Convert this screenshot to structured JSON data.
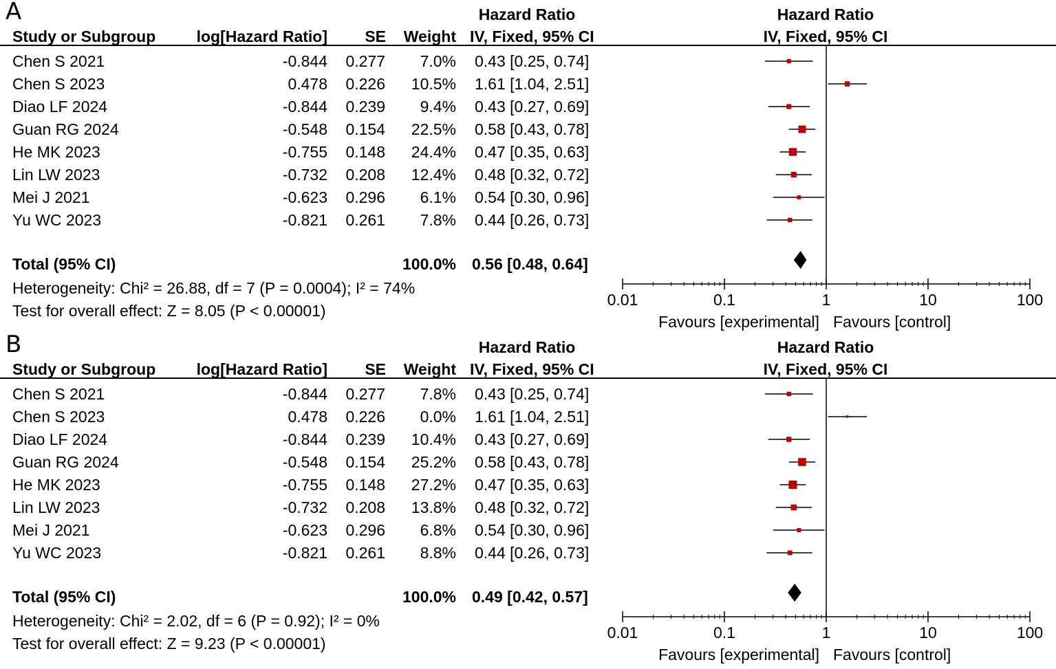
{
  "chart_data": [
    {
      "type": "forest",
      "panel_label": "A",
      "headers": {
        "study": "Study or Subgroup",
        "loghr": "log[Hazard Ratio]",
        "se": "SE",
        "weight": "Weight",
        "hr_title": "Hazard Ratio",
        "hr_method": "IV, Fixed, 95% CI",
        "plot_title": "Hazard Ratio",
        "plot_method": "IV, Fixed, 95% CI"
      },
      "studies": [
        {
          "name": "Chen S 2021",
          "loghr": "-0.844",
          "se": "0.277",
          "weight": "7.0%",
          "hr_text": "0.43 [0.25, 0.74]",
          "hr": 0.43,
          "lo": 0.25,
          "hi": 0.74,
          "w": 7.0
        },
        {
          "name": "Chen S 2023",
          "loghr": "0.478",
          "se": "0.226",
          "weight": "10.5%",
          "hr_text": "1.61 [1.04, 2.51]",
          "hr": 1.61,
          "lo": 1.04,
          "hi": 2.51,
          "w": 10.5
        },
        {
          "name": "Diao LF 2024",
          "loghr": "-0.844",
          "se": "0.239",
          "weight": "9.4%",
          "hr_text": "0.43 [0.27, 0.69]",
          "hr": 0.43,
          "lo": 0.27,
          "hi": 0.69,
          "w": 9.4
        },
        {
          "name": "Guan RG 2024",
          "loghr": "-0.548",
          "se": "0.154",
          "weight": "22.5%",
          "hr_text": "0.58 [0.43, 0.78]",
          "hr": 0.58,
          "lo": 0.43,
          "hi": 0.78,
          "w": 22.5
        },
        {
          "name": "He MK 2023",
          "loghr": "-0.755",
          "se": "0.148",
          "weight": "24.4%",
          "hr_text": "0.47 [0.35, 0.63]",
          "hr": 0.47,
          "lo": 0.35,
          "hi": 0.63,
          "w": 24.4
        },
        {
          "name": "Lin LW 2023",
          "loghr": "-0.732",
          "se": "0.208",
          "weight": "12.4%",
          "hr_text": "0.48 [0.32, 0.72]",
          "hr": 0.48,
          "lo": 0.32,
          "hi": 0.72,
          "w": 12.4
        },
        {
          "name": "Mei J 2021",
          "loghr": "-0.623",
          "se": "0.296",
          "weight": "6.1%",
          "hr_text": "0.54 [0.30, 0.96]",
          "hr": 0.54,
          "lo": 0.3,
          "hi": 0.96,
          "w": 6.1
        },
        {
          "name": "Yu WC 2023",
          "loghr": "-0.821",
          "se": "0.261",
          "weight": "7.8%",
          "hr_text": "0.44 [0.26, 0.73]",
          "hr": 0.44,
          "lo": 0.26,
          "hi": 0.73,
          "w": 7.8
        }
      ],
      "total": {
        "label": "Total (95% CI)",
        "weight": "100.0%",
        "hr_text": "0.56 [0.48, 0.64]",
        "hr": 0.56,
        "lo": 0.48,
        "hi": 0.64
      },
      "heterogeneity": "Heterogeneity: Chi² = 26.88, df = 7 (P = 0.0004); I² = 74%",
      "overall_effect": "Test for overall effect: Z = 8.05 (P < 0.00001)",
      "axis": {
        "scale": "log",
        "range": [
          0.01,
          100
        ],
        "ticks": [
          "0.01",
          "0.1",
          "1",
          "10",
          "100"
        ],
        "tick_values": [
          0.01,
          0.1,
          1,
          10,
          100
        ]
      },
      "favours_left": "Favours [experimental]",
      "favours_right": "Favours [control]"
    },
    {
      "type": "forest",
      "panel_label": "B",
      "headers": {
        "study": "Study or Subgroup",
        "loghr": "log[Hazard Ratio]",
        "se": "SE",
        "weight": "Weight",
        "hr_title": "Hazard Ratio",
        "hr_method": "IV, Fixed, 95% CI",
        "plot_title": "Hazard Ratio",
        "plot_method": "IV, Fixed, 95% CI"
      },
      "studies": [
        {
          "name": "Chen S 2021",
          "loghr": "-0.844",
          "se": "0.277",
          "weight": "7.8%",
          "hr_text": "0.43 [0.25, 0.74]",
          "hr": 0.43,
          "lo": 0.25,
          "hi": 0.74,
          "w": 7.8
        },
        {
          "name": "Chen S 2023",
          "loghr": "0.478",
          "se": "0.226",
          "weight": "0.0%",
          "hr_text": "1.61 [1.04, 2.51]",
          "hr": 1.61,
          "lo": 1.04,
          "hi": 2.51,
          "w": 0.0
        },
        {
          "name": "Diao LF 2024",
          "loghr": "-0.844",
          "se": "0.239",
          "weight": "10.4%",
          "hr_text": "0.43 [0.27, 0.69]",
          "hr": 0.43,
          "lo": 0.27,
          "hi": 0.69,
          "w": 10.4
        },
        {
          "name": "Guan RG 2024",
          "loghr": "-0.548",
          "se": "0.154",
          "weight": "25.2%",
          "hr_text": "0.58 [0.43, 0.78]",
          "hr": 0.58,
          "lo": 0.43,
          "hi": 0.78,
          "w": 25.2
        },
        {
          "name": "He MK 2023",
          "loghr": "-0.755",
          "se": "0.148",
          "weight": "27.2%",
          "hr_text": "0.47 [0.35, 0.63]",
          "hr": 0.47,
          "lo": 0.35,
          "hi": 0.63,
          "w": 27.2
        },
        {
          "name": "Lin LW 2023",
          "loghr": "-0.732",
          "se": "0.208",
          "weight": "13.8%",
          "hr_text": "0.48 [0.32, 0.72]",
          "hr": 0.48,
          "lo": 0.32,
          "hi": 0.72,
          "w": 13.8
        },
        {
          "name": "Mei J 2021",
          "loghr": "-0.623",
          "se": "0.296",
          "weight": "6.8%",
          "hr_text": "0.54 [0.30, 0.96]",
          "hr": 0.54,
          "lo": 0.3,
          "hi": 0.96,
          "w": 6.8
        },
        {
          "name": "Yu WC 2023",
          "loghr": "-0.821",
          "se": "0.261",
          "weight": "8.8%",
          "hr_text": "0.44 [0.26, 0.73]",
          "hr": 0.44,
          "lo": 0.26,
          "hi": 0.73,
          "w": 8.8
        }
      ],
      "total": {
        "label": "Total (95% CI)",
        "weight": "100.0%",
        "hr_text": "0.49 [0.42, 0.57]",
        "hr": 0.49,
        "lo": 0.42,
        "hi": 0.57
      },
      "heterogeneity": "Heterogeneity: Chi² = 2.02, df = 6 (P = 0.92); I² = 0%",
      "overall_effect": "Test for overall effect: Z = 9.23 (P < 0.00001)",
      "axis": {
        "scale": "log",
        "range": [
          0.01,
          100
        ],
        "ticks": [
          "0.01",
          "0.1",
          "1",
          "10",
          "100"
        ],
        "tick_values": [
          0.01,
          0.1,
          1,
          10,
          100
        ]
      },
      "favours_left": "Favours [experimental]",
      "favours_right": "Favours [control]"
    }
  ],
  "colors": {
    "marker": "#c00000",
    "line": "#000000",
    "diamond": "#000000"
  }
}
